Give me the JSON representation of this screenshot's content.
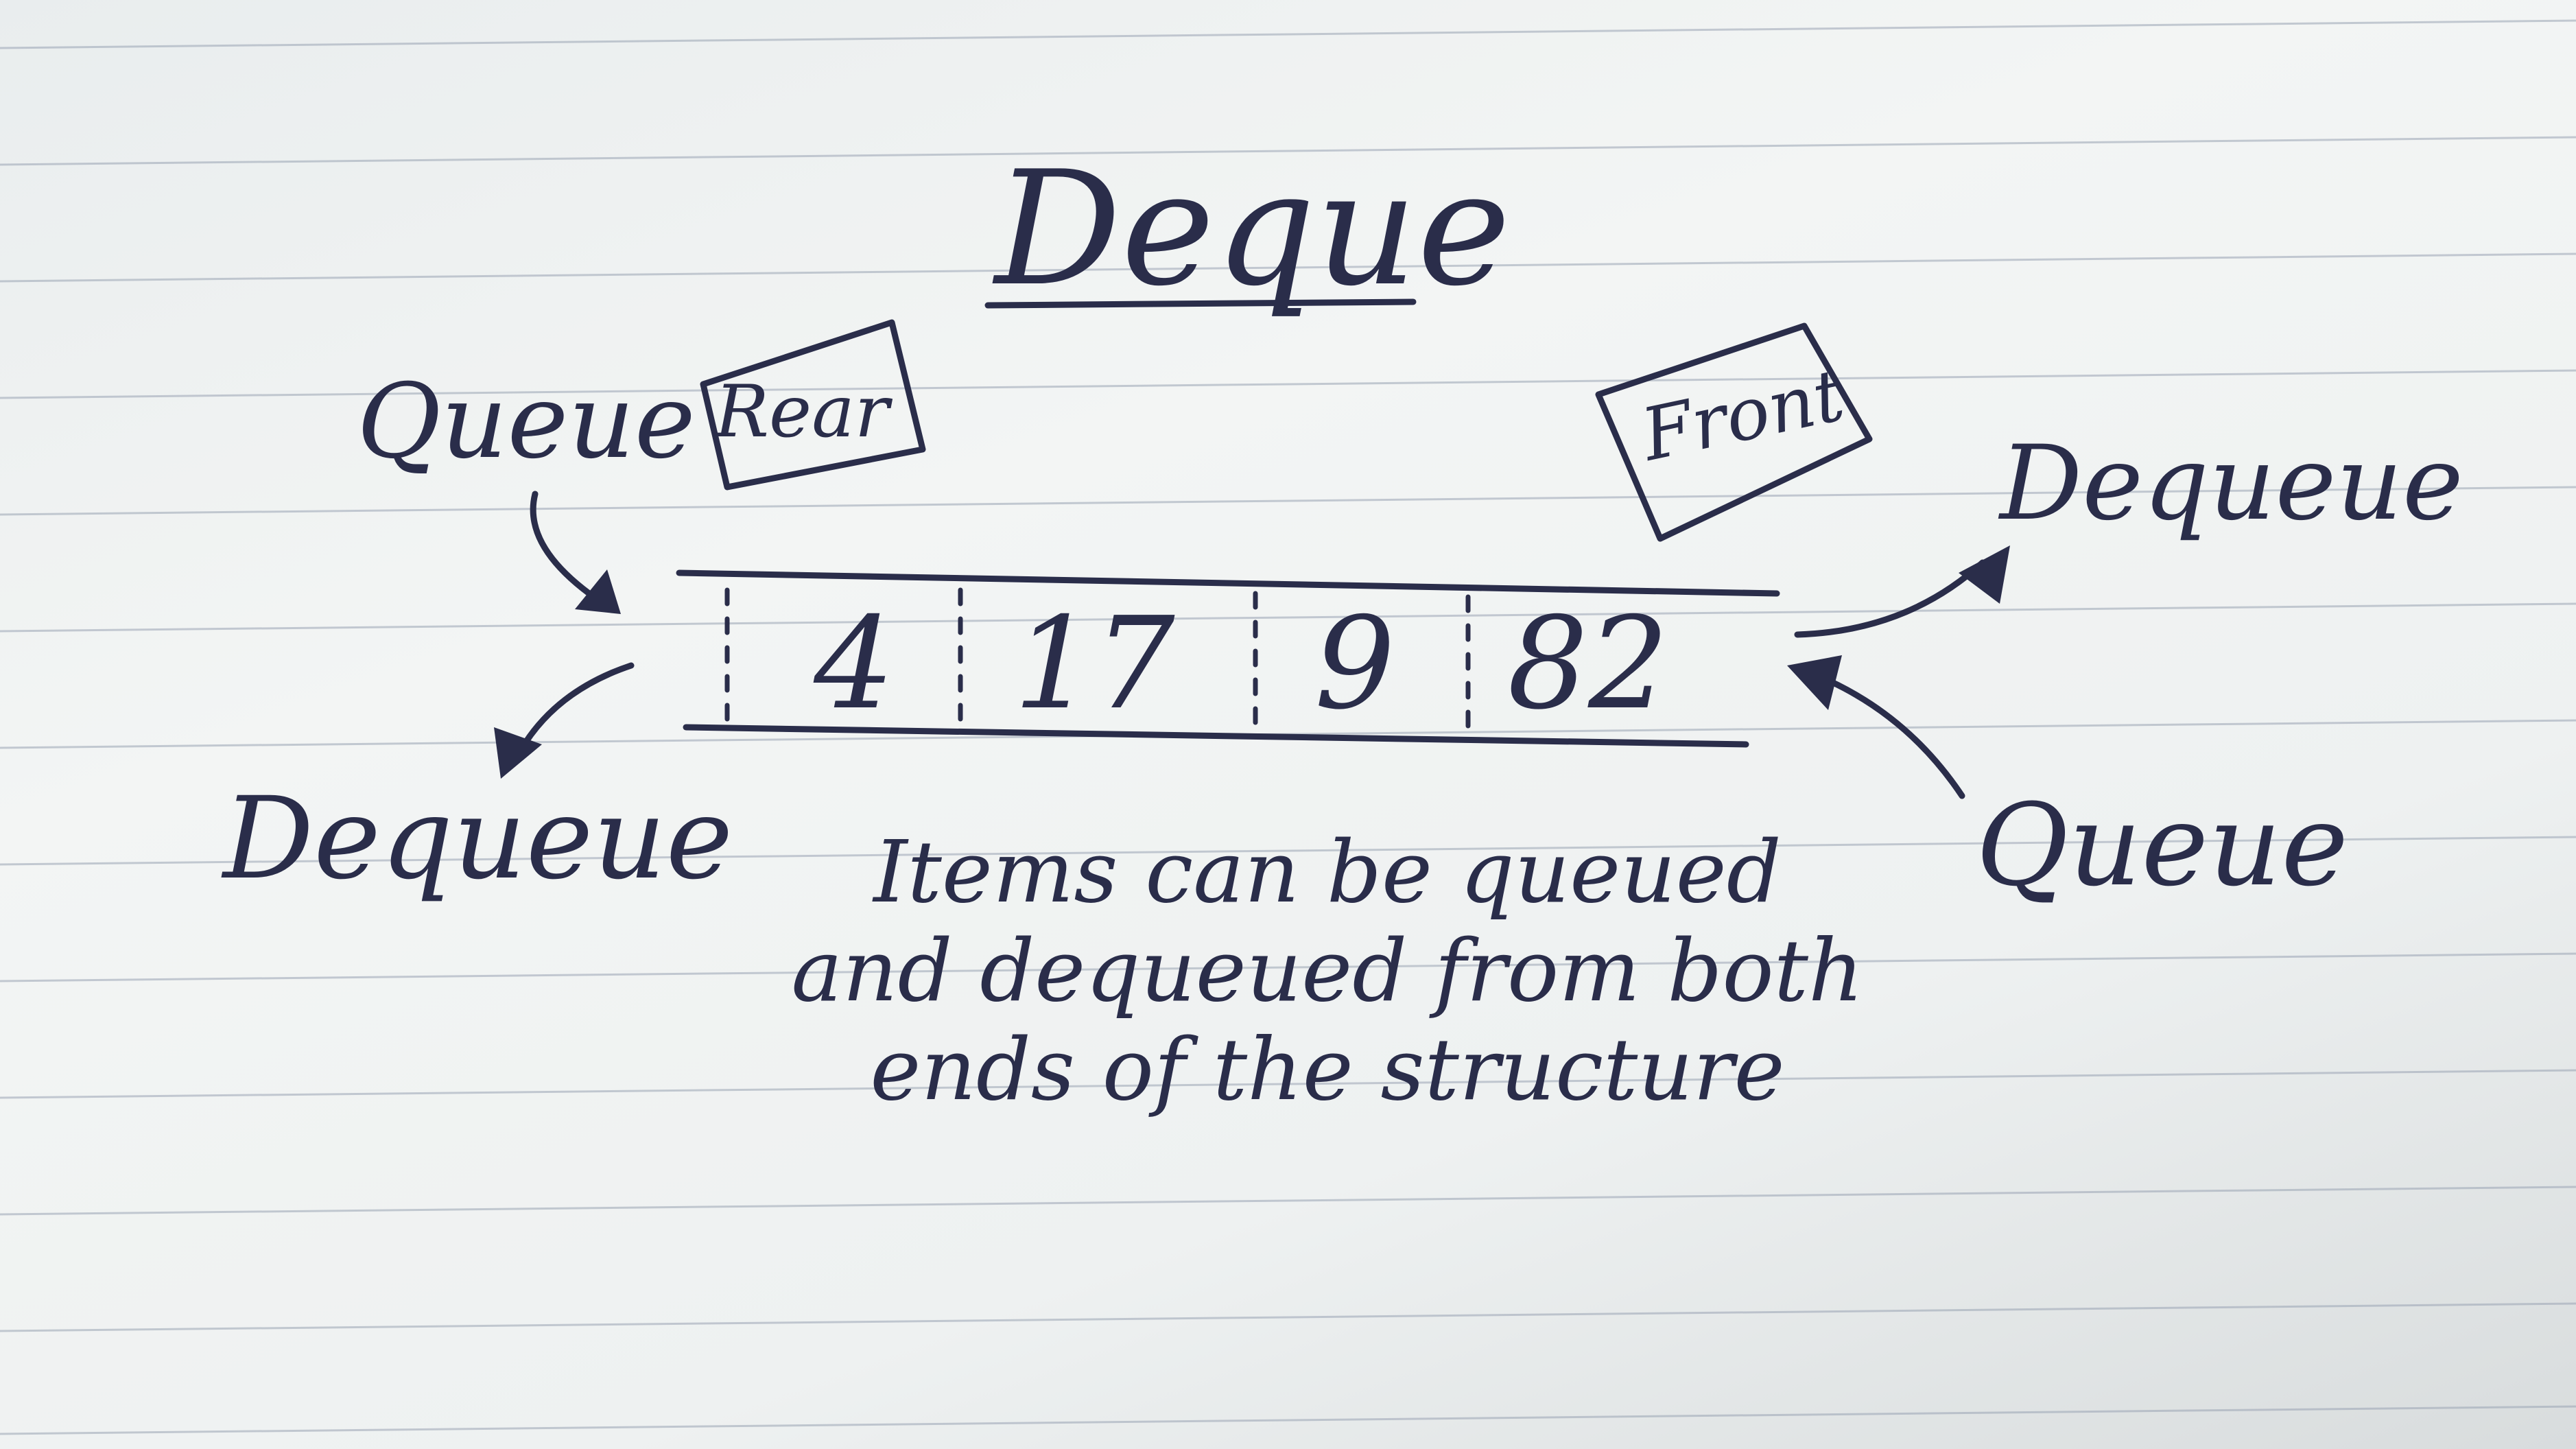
{
  "title": "Deque",
  "rear_label": "Rear",
  "front_label": "Front",
  "left_end": {
    "queue_label": "Queue",
    "dequeue_label": "Dequeue"
  },
  "right_end": {
    "dequeue_label": "Dequeue",
    "queue_label": "Queue"
  },
  "cells": [
    "4",
    "17",
    "9",
    "82"
  ],
  "caption": [
    "Items can be queued",
    "and dequeued from both",
    "ends of the structure"
  ],
  "colors": {
    "ink": "#2a2d4a",
    "paper": "#eef1f1",
    "rule": "#9aa4b4"
  }
}
